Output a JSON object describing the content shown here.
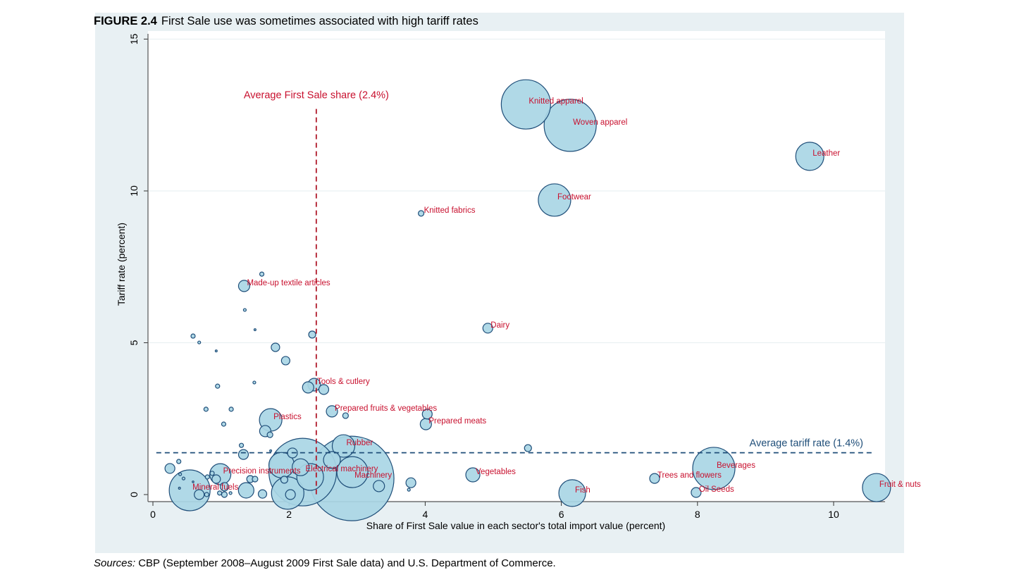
{
  "figure": {
    "number": "FIGURE 2.4",
    "title": "First Sale use was sometimes associated with high tariff rates",
    "sources_label": "Sources:",
    "sources_text": "CBP (September 2008–August 2009 First Sale data) and U.S. Department of Commerce."
  },
  "colors": {
    "bubble_fill": "#a9d6e5",
    "bubble_stroke": "#1f4e79",
    "label": "#c8102e",
    "avg_share_line": "#b0192a",
    "avg_tariff_line": "#1f4e79",
    "panel_bg": "#e8f0f3"
  },
  "chart_data": {
    "type": "scatter",
    "subtype": "bubble",
    "title": "First Sale use was sometimes associated with high tariff rates",
    "xlabel": "Share of First Sale value in each sector's total import value (percent)",
    "ylabel": "Tariff rate (percent)",
    "xlim": [
      0,
      10.7
    ],
    "ylim": [
      0,
      15
    ],
    "xticks": [
      "0",
      "2",
      "4",
      "6",
      "8",
      "10"
    ],
    "yticks": [
      "0",
      "5",
      "10",
      "15"
    ],
    "grid": "horizontal",
    "size_note": "weight = relative sector import value",
    "reference_lines": [
      {
        "orientation": "vertical",
        "value": 2.4,
        "label": "Average First Sale share (2.4%)",
        "y_range": [
          0,
          12.7
        ]
      },
      {
        "orientation": "horizontal",
        "value": 1.4,
        "label": "Average tariff rate (1.4%)",
        "x_range": [
          0.05,
          10.6
        ]
      }
    ],
    "points": [
      {
        "x": 2.92,
        "y": 0.53,
        "w": 36,
        "label": "Machinery"
      },
      {
        "x": 2.2,
        "y": 0.74,
        "w": 23,
        "label": "Electrical machinery"
      },
      {
        "x": 6.13,
        "y": 12.16,
        "w": 13.69,
        "label": "Woven apparel"
      },
      {
        "x": 5.48,
        "y": 12.85,
        "w": 12.25,
        "label": "Knitted apparel"
      },
      {
        "x": 8.24,
        "y": 0.86,
        "w": 9,
        "label": "Beverages"
      },
      {
        "x": 0.54,
        "y": 0.14,
        "w": 8.41,
        "label": "Mineral fuels"
      },
      {
        "x": 1.98,
        "y": 0.05,
        "w": 5.29,
        "label": ""
      },
      {
        "x": 5.9,
        "y": 9.7,
        "w": 5.29,
        "label": "Footwear"
      },
      {
        "x": 2.93,
        "y": 0.74,
        "w": 4.84,
        "label": ""
      },
      {
        "x": 9.65,
        "y": 11.14,
        "w": 4,
        "label": "Leather"
      },
      {
        "x": 10.63,
        "y": 0.23,
        "w": 4,
        "label": "Fruit & nuts"
      },
      {
        "x": 6.16,
        "y": 0.05,
        "w": 3.61,
        "label": "Fish"
      },
      {
        "x": 2.31,
        "y": 0.58,
        "w": 3.61,
        "label": ""
      },
      {
        "x": 1.89,
        "y": 0.97,
        "w": 3.24,
        "label": ""
      },
      {
        "x": 1.73,
        "y": 2.46,
        "w": 2.56,
        "label": "Plastics"
      },
      {
        "x": 2.8,
        "y": 1.6,
        "w": 2.56,
        "label": "Rubber"
      },
      {
        "x": 0.99,
        "y": 0.67,
        "w": 2.25,
        "label": "Precision instruments"
      },
      {
        "x": 2.17,
        "y": 0.9,
        "w": 1.44,
        "label": ""
      },
      {
        "x": 2.63,
        "y": 1.14,
        "w": 1.44,
        "label": ""
      },
      {
        "x": 1.37,
        "y": 0.14,
        "w": 1.21,
        "label": ""
      },
      {
        "x": 4.7,
        "y": 0.65,
        "w": 1,
        "label": "Vegetables"
      },
      {
        "x": 2.37,
        "y": 3.62,
        "w": 0.81,
        "label": "Tools & cutlery"
      },
      {
        "x": 2.28,
        "y": 3.53,
        "w": 0.64,
        "label": ""
      },
      {
        "x": 1.34,
        "y": 6.87,
        "w": 0.64,
        "label": "Made-up textile articles"
      },
      {
        "x": 1.65,
        "y": 2.09,
        "w": 0.64,
        "label": ""
      },
      {
        "x": 2.63,
        "y": 2.74,
        "w": 0.64,
        "label": "Prepared fruits & vegetables"
      },
      {
        "x": 4.01,
        "y": 2.32,
        "w": 0.64,
        "label": "Prepared meats"
      },
      {
        "x": 3.32,
        "y": 0.28,
        "w": 0.64,
        "label": ""
      },
      {
        "x": 4.92,
        "y": 5.48,
        "w": 0.49,
        "label": "Dairy"
      },
      {
        "x": 2.51,
        "y": 3.46,
        "w": 0.49,
        "label": ""
      },
      {
        "x": 4.03,
        "y": 2.65,
        "w": 0.49,
        "label": ""
      },
      {
        "x": 1.33,
        "y": 1.32,
        "w": 0.49,
        "label": ""
      },
      {
        "x": 7.37,
        "y": 0.53,
        "w": 0.49,
        "label": "Trees and flowers"
      },
      {
        "x": 7.98,
        "y": 0.07,
        "w": 0.49,
        "label": "Oil Seeds"
      },
      {
        "x": 2.02,
        "y": 0.0,
        "w": 0.49,
        "label": ""
      },
      {
        "x": 2.05,
        "y": 1.37,
        "w": 0.49,
        "label": ""
      },
      {
        "x": 0.68,
        "y": 0.0,
        "w": 0.49,
        "label": ""
      },
      {
        "x": 0.25,
        "y": 0.86,
        "w": 0.49,
        "label": ""
      },
      {
        "x": 3.79,
        "y": 0.39,
        "w": 0.49,
        "label": ""
      },
      {
        "x": 1.8,
        "y": 4.85,
        "w": 0.36,
        "label": ""
      },
      {
        "x": 1.95,
        "y": 4.41,
        "w": 0.36,
        "label": ""
      },
      {
        "x": 1.61,
        "y": 0.02,
        "w": 0.36,
        "label": ""
      },
      {
        "x": 0.93,
        "y": 0.51,
        "w": 0.36,
        "label": ""
      },
      {
        "x": 1.05,
        "y": 0.26,
        "w": 0.36,
        "label": ""
      },
      {
        "x": 2.34,
        "y": 5.27,
        "w": 0.25,
        "label": ""
      },
      {
        "x": 5.51,
        "y": 1.53,
        "w": 0.25,
        "label": ""
      },
      {
        "x": 1.93,
        "y": 0.49,
        "w": 0.25,
        "label": ""
      },
      {
        "x": 1.43,
        "y": 0.51,
        "w": 0.25,
        "label": ""
      },
      {
        "x": 3.94,
        "y": 9.26,
        "w": 0.16,
        "label": "Knitted fabrics"
      },
      {
        "x": 1.72,
        "y": 1.97,
        "w": 0.16,
        "label": ""
      },
      {
        "x": 2.83,
        "y": 2.6,
        "w": 0.16,
        "label": ""
      },
      {
        "x": 1.05,
        "y": 0.0,
        "w": 0.16,
        "label": ""
      },
      {
        "x": 1.5,
        "y": 0.51,
        "w": 0.16,
        "label": ""
      },
      {
        "x": 1.6,
        "y": 7.26,
        "w": 0.09,
        "label": ""
      },
      {
        "x": 0.59,
        "y": 5.22,
        "w": 0.09,
        "label": ""
      },
      {
        "x": 0.95,
        "y": 3.57,
        "w": 0.09,
        "label": ""
      },
      {
        "x": 0.78,
        "y": 2.81,
        "w": 0.09,
        "label": ""
      },
      {
        "x": 1.15,
        "y": 2.81,
        "w": 0.09,
        "label": ""
      },
      {
        "x": 1.04,
        "y": 2.32,
        "w": 0.09,
        "label": ""
      },
      {
        "x": 1.3,
        "y": 1.62,
        "w": 0.09,
        "label": ""
      },
      {
        "x": 0.79,
        "y": 0.0,
        "w": 0.09,
        "label": ""
      },
      {
        "x": 0.38,
        "y": 1.09,
        "w": 0.09,
        "label": ""
      },
      {
        "x": 0.87,
        "y": 0.7,
        "w": 0.09,
        "label": ""
      },
      {
        "x": 0.8,
        "y": 0.58,
        "w": 0.09,
        "label": ""
      },
      {
        "x": 0.98,
        "y": 0.05,
        "w": 0.09,
        "label": ""
      },
      {
        "x": 1.35,
        "y": 6.08,
        "w": 0.04,
        "label": ""
      },
      {
        "x": 0.68,
        "y": 5.01,
        "w": 0.04,
        "label": ""
      },
      {
        "x": 1.49,
        "y": 3.69,
        "w": 0.04,
        "label": ""
      },
      {
        "x": 0.4,
        "y": 0.67,
        "w": 0.04,
        "label": ""
      },
      {
        "x": 0.45,
        "y": 0.53,
        "w": 0.04,
        "label": ""
      },
      {
        "x": 1.14,
        "y": 0.05,
        "w": 0.04,
        "label": ""
      },
      {
        "x": 3.76,
        "y": 0.16,
        "w": 0.04,
        "label": ""
      },
      {
        "x": 1.5,
        "y": 5.43,
        "w": 0.02,
        "label": ""
      },
      {
        "x": 0.93,
        "y": 4.73,
        "w": 0.02,
        "label": ""
      },
      {
        "x": 0.39,
        "y": 0.21,
        "w": 0.02,
        "label": ""
      },
      {
        "x": 1.73,
        "y": 1.44,
        "w": 0.02,
        "label": ""
      },
      {
        "x": 0.59,
        "y": 0.42,
        "w": 0.01,
        "label": ""
      }
    ]
  }
}
